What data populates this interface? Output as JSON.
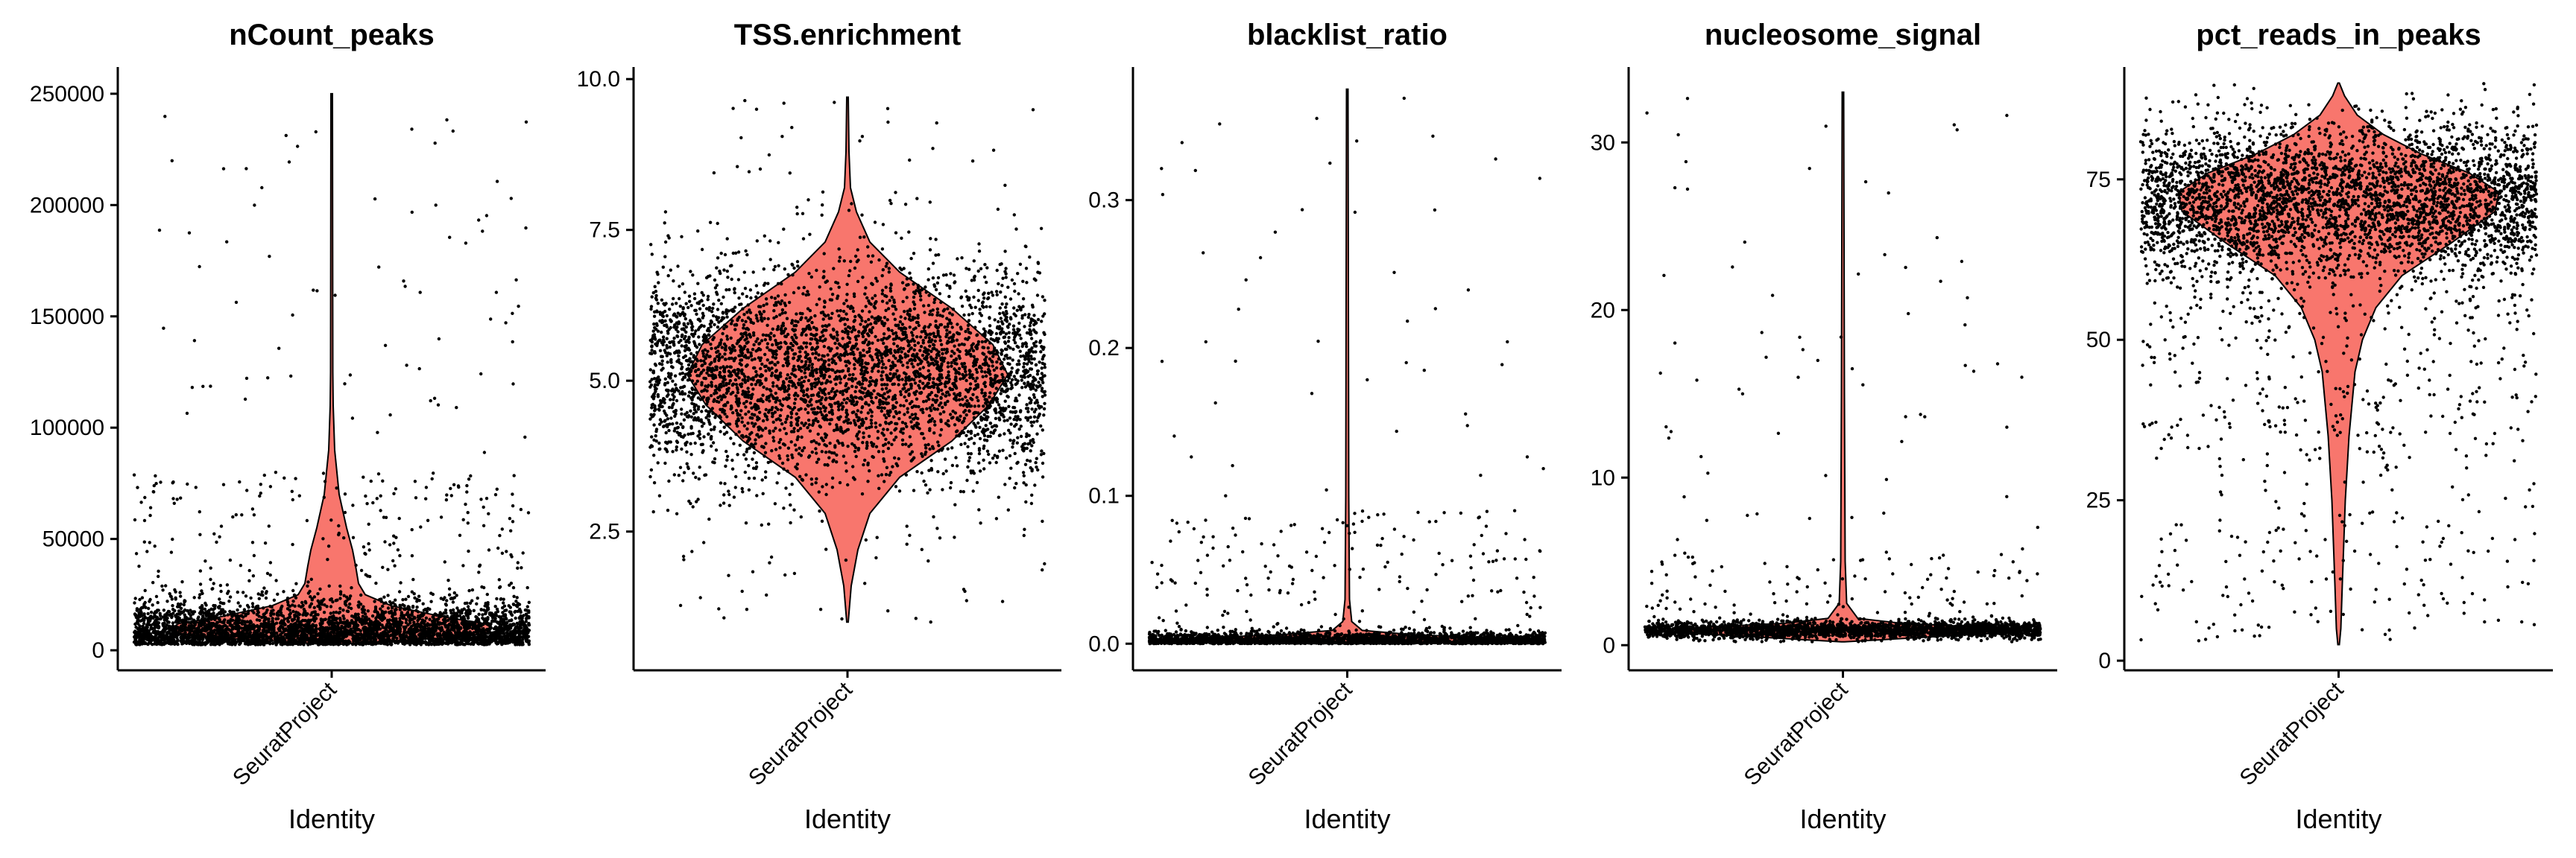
{
  "figure": {
    "background": "#ffffff",
    "violin_fill": "#F8766D",
    "point_color": "#000000"
  },
  "chart_data": [
    {
      "type": "violin",
      "title": "nCount_peaks",
      "xlabel": "Identity",
      "ylabel": "",
      "categories": [
        "SeuratProject"
      ],
      "ylim": [
        -9000,
        262000
      ],
      "yticks": [
        0,
        50000,
        100000,
        150000,
        200000,
        250000
      ],
      "ytick_labels": [
        "0",
        "50000",
        "100000",
        "150000",
        "200000",
        "250000"
      ],
      "range": [
        2500,
        250000
      ],
      "mode": 11000,
      "summary": {
        "min": 2500,
        "mode": 11000,
        "max": 250000
      }
    },
    {
      "type": "violin",
      "title": "TSS.enrichment",
      "xlabel": "Identity",
      "ylabel": "",
      "categories": [
        "SeuratProject"
      ],
      "ylim": [
        0.2,
        10.2
      ],
      "yticks": [
        2.5,
        5.0,
        7.5,
        10.0
      ],
      "ytick_labels": [
        "2.5",
        "5.0",
        "7.5",
        "10.0"
      ],
      "range": [
        1.0,
        9.7
      ],
      "mode": 5.1,
      "summary": {
        "min": 1.0,
        "mode": 5.1,
        "max": 9.7
      }
    },
    {
      "type": "violin",
      "title": "blacklist_ratio",
      "xlabel": "Identity",
      "ylabel": "",
      "categories": [
        "SeuratProject"
      ],
      "ylim": [
        -0.018,
        0.39
      ],
      "yticks": [
        0.0,
        0.1,
        0.2,
        0.3
      ],
      "ytick_labels": [
        "0.0",
        "0.1",
        "0.2",
        "0.3"
      ],
      "range": [
        0.0,
        0.375
      ],
      "mode": 0.002,
      "summary": {
        "min": 0.0,
        "mode": 0.002,
        "max": 0.375
      }
    },
    {
      "type": "violin",
      "title": "nucleosome_signal",
      "xlabel": "Identity",
      "ylabel": "",
      "categories": [
        "SeuratProject"
      ],
      "ylim": [
        -1.5,
        34.5
      ],
      "yticks": [
        0,
        10,
        20,
        30
      ],
      "ytick_labels": [
        "0",
        "10",
        "20",
        "30"
      ],
      "range": [
        0.2,
        33
      ],
      "mode": 0.9,
      "summary": {
        "min": 0.2,
        "mode": 0.9,
        "max": 33
      }
    },
    {
      "type": "violin",
      "title": "pct_reads_in_peaks",
      "xlabel": "Identity",
      "ylabel": "",
      "categories": [
        "SeuratProject"
      ],
      "ylim": [
        -1.5,
        92.5
      ],
      "yticks": [
        0,
        25,
        50,
        75
      ],
      "ytick_labels": [
        "0",
        "25",
        "50",
        "75"
      ],
      "range": [
        2.5,
        90
      ],
      "mode": 70,
      "summary": {
        "min": 2.5,
        "mode": 70,
        "max": 90
      }
    }
  ]
}
